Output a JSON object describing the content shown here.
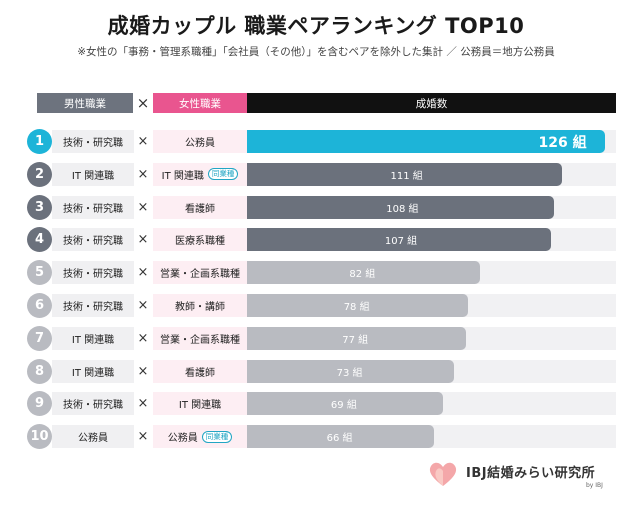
{
  "title": "成婚カップル 職業ペアランキング TOP10",
  "subtitle": "※女性の「事務・管理系職種」「会社員（その他）」を含むペアを除外した集計 ／ 公務員＝地方公務員",
  "header": {
    "male": "男性職業",
    "times": "×",
    "female": "女性職業",
    "count": "成婚数"
  },
  "colors": {
    "top": "#1db4d8",
    "dark": "#6b717c",
    "light": "#b9bbc1",
    "female_bg": "#fdeef3",
    "male_bg": "#f0f0f2",
    "pink": "#e9558f",
    "tag": "#22a6c4"
  },
  "chart_data": {
    "type": "bar",
    "orientation": "horizontal",
    "categories": [
      "1",
      "2",
      "3",
      "4",
      "5",
      "6",
      "7",
      "8",
      "9",
      "10"
    ],
    "values": [
      126,
      111,
      108,
      107,
      82,
      78,
      77,
      73,
      69,
      66
    ],
    "xlim": [
      0,
      130
    ],
    "unit": "組",
    "male": [
      "技術・研究職",
      "IT 関連職",
      "技術・研究職",
      "技術・研究職",
      "技術・研究職",
      "技術・研究職",
      "IT 関連職",
      "IT 関連職",
      "技術・研究職",
      "公務員"
    ],
    "female": [
      "公務員",
      "IT 関連職",
      "看護師",
      "医療系職種",
      "営業・企画系職種",
      "教師・講師",
      "営業・企画系職種",
      "看護師",
      "IT 関連職",
      "公務員"
    ],
    "tags": [
      "",
      "同業種",
      "",
      "",
      "",
      "",
      "",
      "",
      "",
      "同業種"
    ],
    "labels": [
      "126 組",
      "111 組",
      "108 組",
      "107 組",
      "82 組",
      "78 組",
      "77 組",
      "73 組",
      "69 組",
      "66 組"
    ]
  },
  "logo": {
    "name": "IBJ結婚みらい研究所",
    "by": "by IBJ"
  }
}
